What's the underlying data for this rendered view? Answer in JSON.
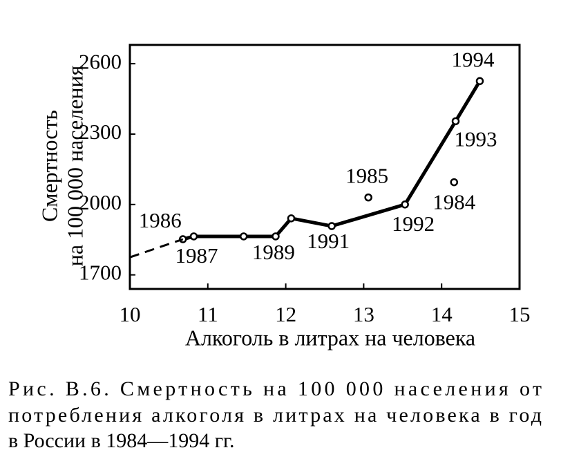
{
  "chart_data": {
    "type": "line",
    "y_label_lines": [
      "Смертность",
      "на 100 000 населения"
    ],
    "x_label": "Алкоголь в литрах на человека",
    "caption_lines": [
      "Рис. В.6. Смертность на 100 000 населения от",
      "потребления алкоголя в литрах на человека в год",
      "в России в 1984—1994 гг."
    ],
    "xlim": [
      10,
      15
    ],
    "xticks": [
      10,
      11,
      12,
      13,
      14,
      15
    ],
    "ylim": [
      1640,
      2680
    ],
    "yticks": [
      1700,
      2000,
      2300,
      2600
    ],
    "series": [
      {
        "style": "solid",
        "color": "#000000",
        "x": [
          10.68,
          10.82,
          11.46,
          11.87,
          12.07,
          12.59,
          13.53,
          14.18,
          14.49
        ],
        "values": [
          1852,
          1864,
          1864,
          1864,
          1941,
          1908,
          2000,
          2355,
          2526
        ],
        "labels": [
          "1986",
          "1987",
          null,
          "1989",
          null,
          "1991",
          "1992",
          "1993",
          "1994"
        ]
      },
      {
        "style": "dashed",
        "color": "#000000",
        "x": [
          10,
          10.68
        ],
        "values": [
          1775,
          1852
        ]
      },
      {
        "style": "points",
        "color": "#000000",
        "x": [
          13.06,
          14.16
        ],
        "values": [
          2030,
          2095
        ],
        "labels": [
          "1985",
          "1984"
        ]
      }
    ]
  }
}
